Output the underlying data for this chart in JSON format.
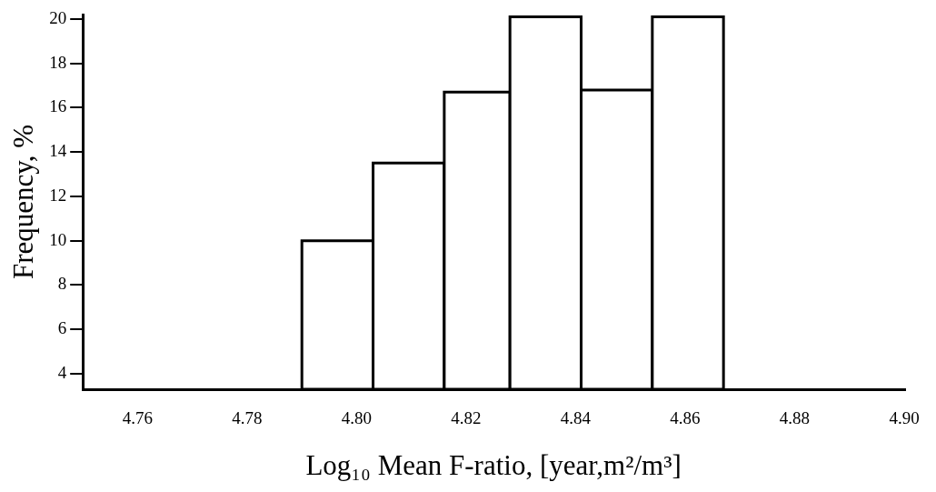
{
  "chart_data": {
    "type": "histogram",
    "xlabel": "Log₁₀ Mean F-ratio, [year,m²/m³]",
    "ylabel": "Frequency, %",
    "bins": [
      4.79,
      4.803,
      4.816,
      4.828,
      4.841,
      4.854,
      4.867
    ],
    "values": [
      10.0,
      13.5,
      16.7,
      20.1,
      16.8,
      20.1
    ],
    "color": "#ffffff",
    "xlim": [
      4.75,
      4.9
    ],
    "xticks": [
      {
        "value": 4.76,
        "label": "4.76"
      },
      {
        "value": 4.78,
        "label": "4.78"
      },
      {
        "value": 4.8,
        "label": "4.80"
      },
      {
        "value": 4.82,
        "label": "4.82"
      },
      {
        "value": 4.84,
        "label": "4.84"
      },
      {
        "value": 4.86,
        "label": "4.86"
      },
      {
        "value": 4.88,
        "label": "4.88"
      },
      {
        "value": 4.9,
        "label": "4.90"
      }
    ],
    "ylim": [
      3.3,
      20.2
    ],
    "yticks": [
      4,
      6,
      8,
      10,
      12,
      14,
      16,
      18,
      20
    ],
    "grid": false
  }
}
